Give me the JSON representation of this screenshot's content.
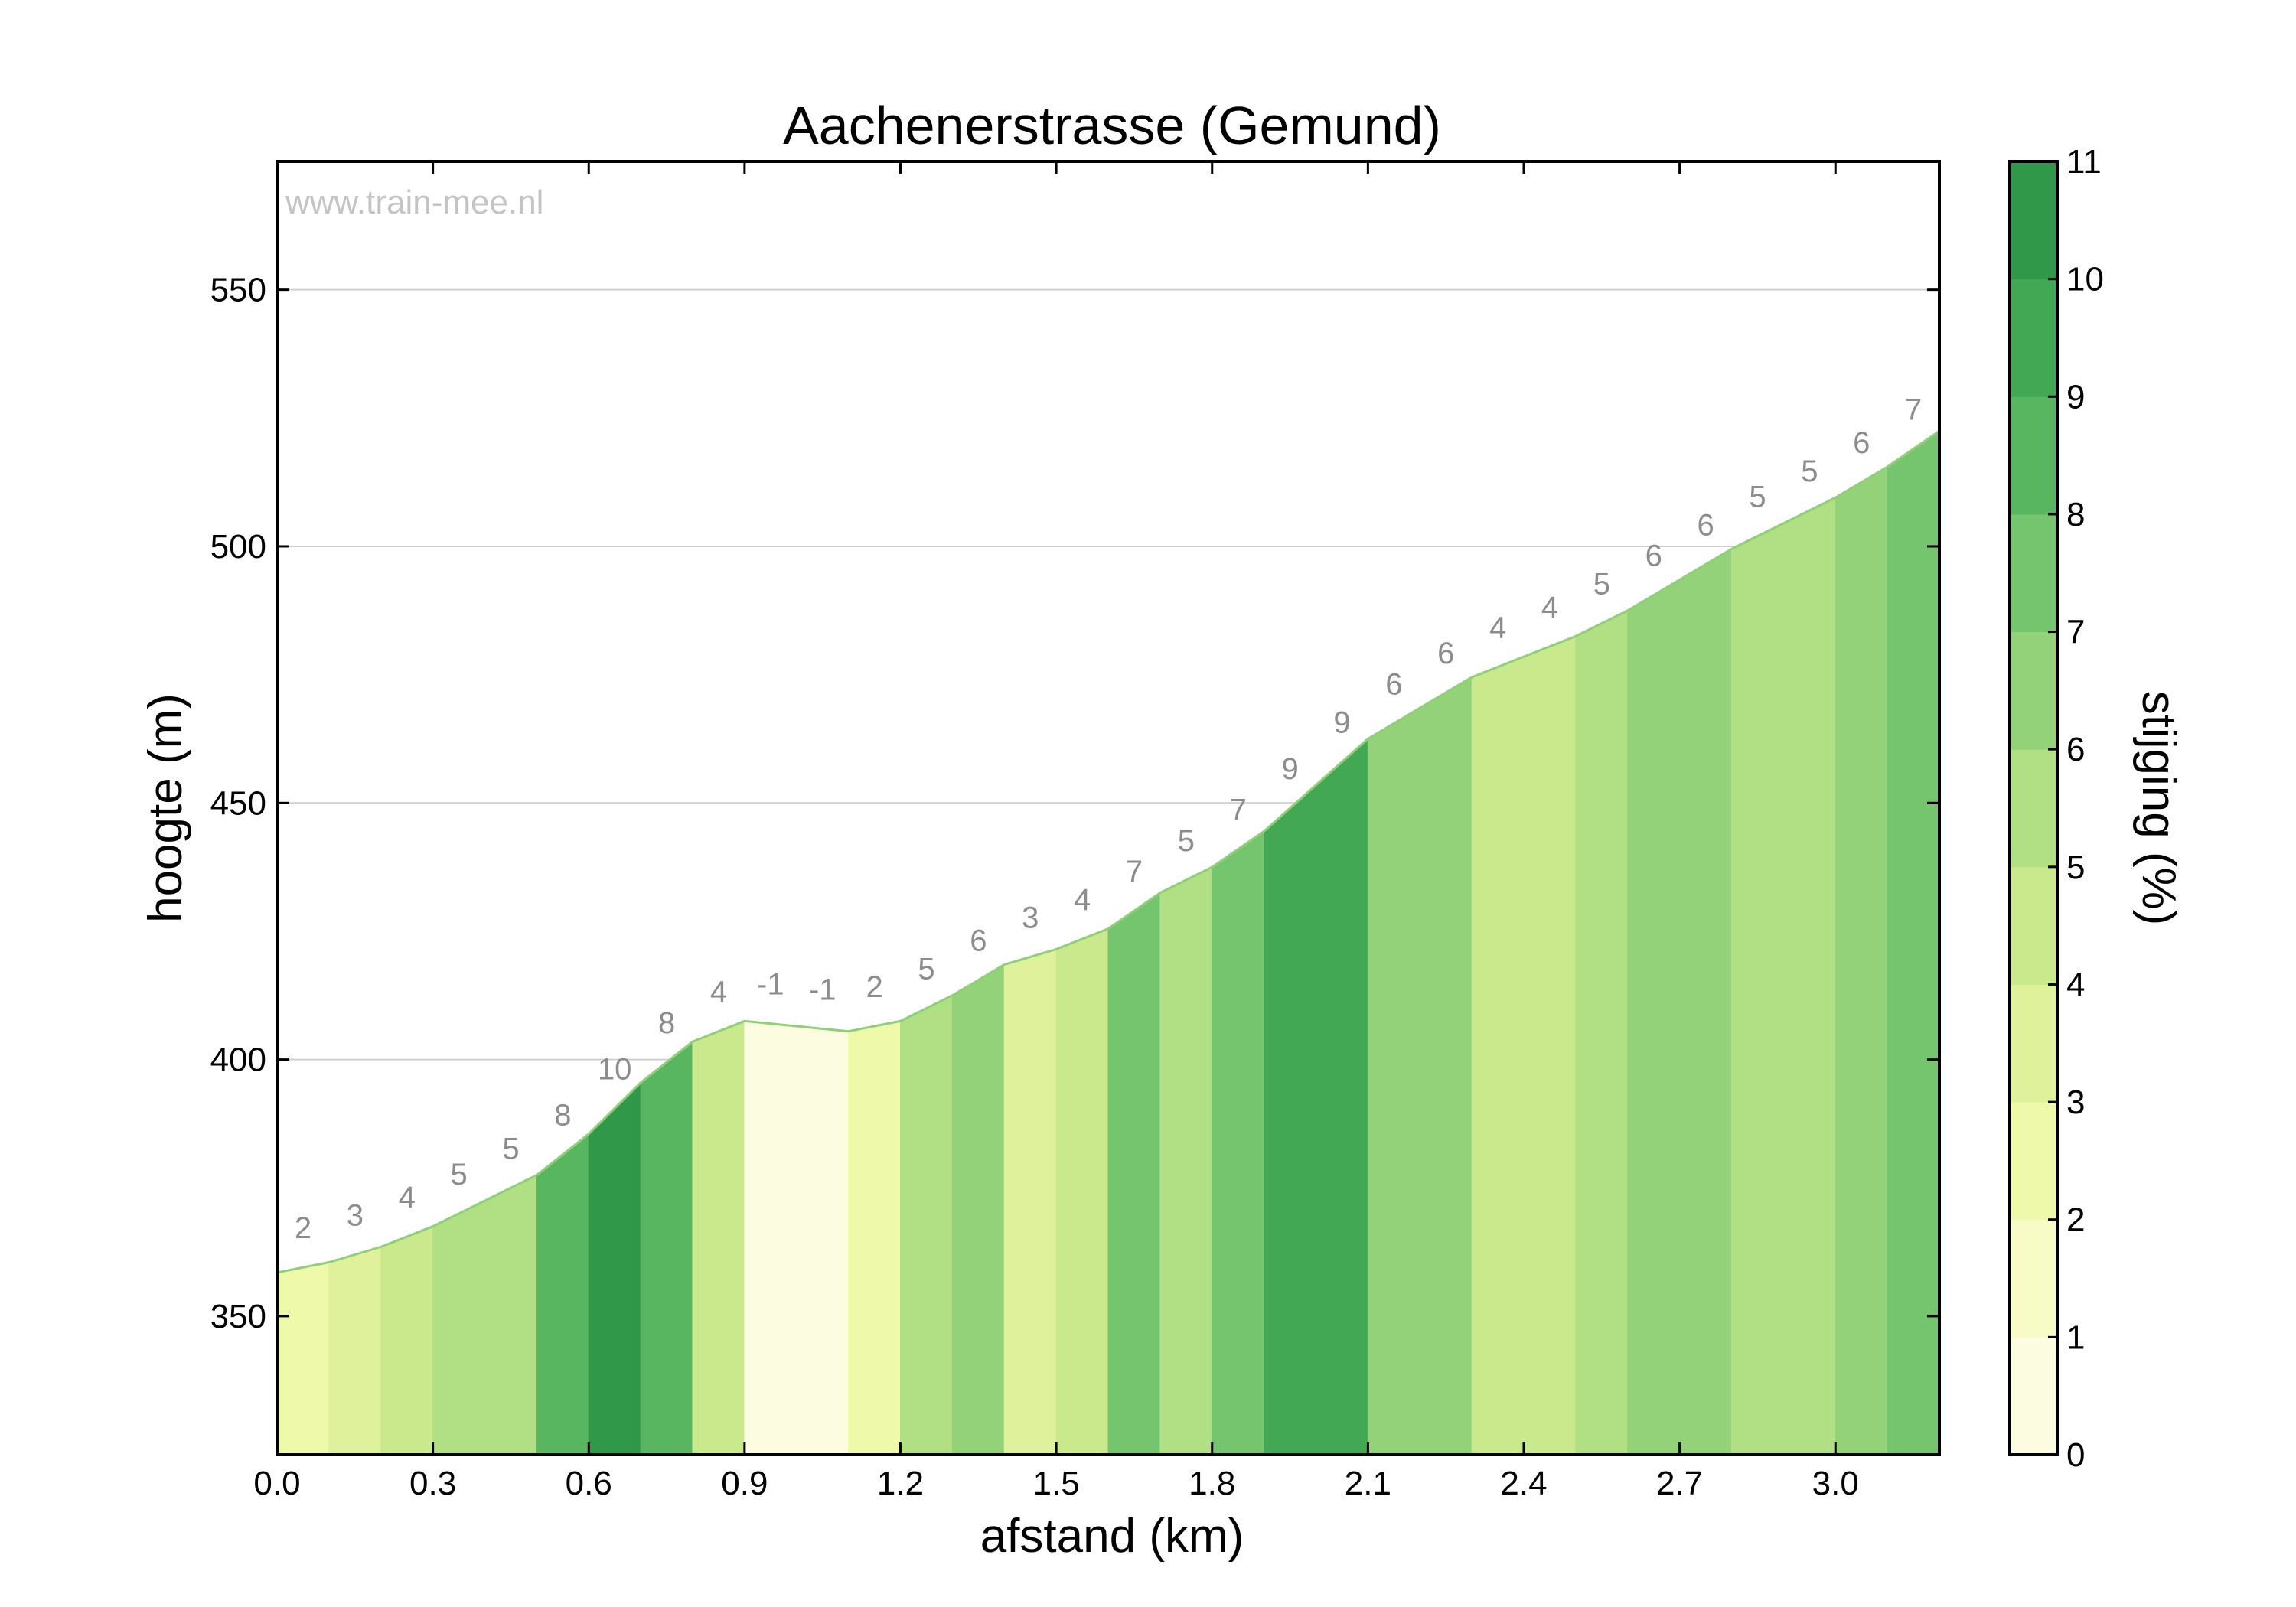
{
  "chart_data": {
    "type": "area",
    "title": "Aachenerstrasse (Gemund)",
    "xlabel": "afstand (km)",
    "ylabel": "hoogte (m)",
    "colorbar_label": "stijging (%)",
    "watermark": "www.train-mee.nl",
    "xlim": [
      0,
      3.2
    ],
    "ylim": [
      323,
      575
    ],
    "xticks": [
      "0.0",
      "0.3",
      "0.6",
      "0.9",
      "1.2",
      "1.5",
      "1.8",
      "2.1",
      "2.4",
      "2.7",
      "3.0"
    ],
    "yticks": [
      "350",
      "400",
      "450",
      "500",
      "550"
    ],
    "colorbar_ticks": [
      "0",
      "1",
      "2",
      "3",
      "4",
      "5",
      "6",
      "7",
      "8",
      "9",
      "10",
      "11"
    ],
    "colorbar_colors": [
      "#fcfce0",
      "#f7fbc6",
      "#eef9aa",
      "#dff19b",
      "#c9e98c",
      "#b1df84",
      "#94d27a",
      "#75c56f",
      "#58b661",
      "#42a853",
      "#2f9849"
    ],
    "grid": true,
    "distance_km": [
      0.0,
      0.1,
      0.2,
      0.3,
      0.4,
      0.5,
      0.6,
      0.7,
      0.8,
      0.9,
      1.0,
      1.1,
      1.2,
      1.3,
      1.4,
      1.5,
      1.6,
      1.7,
      1.8,
      1.9,
      2.0,
      2.1,
      2.2,
      2.3,
      2.4,
      2.5,
      2.6,
      2.7,
      2.8,
      2.9,
      3.0,
      3.1,
      3.2
    ],
    "elevation_m": [
      358.5,
      360.5,
      363.5,
      367.5,
      372.5,
      377.5,
      385.5,
      395.5,
      403.5,
      407.5,
      406.5,
      405.5,
      407.5,
      412.5,
      418.5,
      421.5,
      425.5,
      432.5,
      437.5,
      444.5,
      453.5,
      462.5,
      468.5,
      474.5,
      478.5,
      482.5,
      487.5,
      493.5,
      499.5,
      504.5,
      509.5,
      515.5,
      522.5
    ],
    "gradients_pct": [
      2,
      3,
      4,
      5,
      5,
      8,
      10,
      8,
      4,
      -1,
      -1,
      2,
      5,
      6,
      3,
      4,
      7,
      5,
      7,
      9,
      9,
      6,
      6,
      4,
      4,
      5,
      6,
      6,
      5,
      5,
      6,
      7
    ]
  }
}
